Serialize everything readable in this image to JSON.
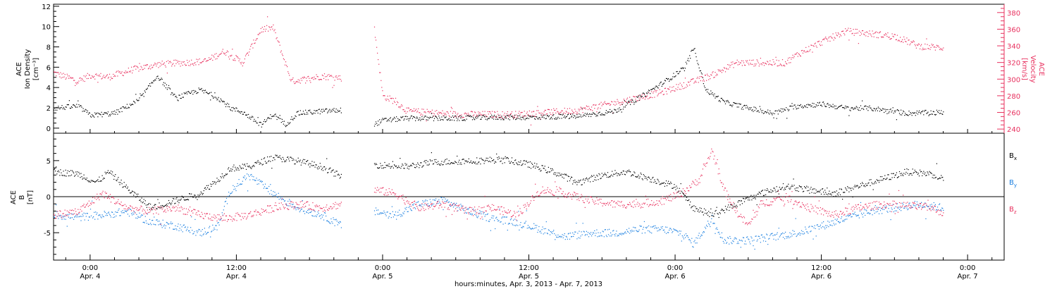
{
  "chart_data": [
    {
      "type": "scatter",
      "panel": "top",
      "ylabel_left": [
        "ACE",
        "Ion Density",
        "[cm⁻³]"
      ],
      "ylabel_right": [
        "ACE",
        "Velocity",
        "[km/s]"
      ],
      "ylim_left": [
        -0.5,
        12.2
      ],
      "ylim_right": [
        235,
        390
      ],
      "yticks_left": [
        0,
        2,
        4,
        6,
        8,
        10,
        12
      ],
      "yticks_right": [
        240,
        260,
        280,
        300,
        320,
        340,
        360,
        380
      ],
      "series": [
        {
          "name": "",
          "axis": "left",
          "color": "#000000",
          "segments": [
            [
              [
                -3.0,
                2.0
              ],
              [
                -1.0,
                2.2
              ],
              [
                0.0,
                1.3
              ],
              [
                2.0,
                1.5
              ],
              [
                4.0,
                2.8
              ],
              [
                5.5,
                5.2
              ],
              [
                7.0,
                3.0
              ],
              [
                9.0,
                3.8
              ],
              [
                10.5,
                3.0
              ],
              [
                11.5,
                2.0
              ],
              [
                12.5,
                1.6
              ],
              [
                14.0,
                0.35
              ],
              [
                15.0,
                1.4
              ],
              [
                16.0,
                0.4
              ],
              [
                17.0,
                1.5
              ],
              [
                19.0,
                1.7
              ],
              [
                20.6,
                1.8
              ]
            ],
            [
              [
                23.3,
                0.4
              ],
              [
                24.0,
                0.8
              ],
              [
                26.0,
                1.0
              ],
              [
                30.0,
                1.0
              ],
              [
                33.0,
                1.1
              ],
              [
                36.0,
                1.1
              ],
              [
                40.0,
                1.2
              ],
              [
                43.0,
                1.7
              ],
              [
                45.0,
                3.0
              ],
              [
                47.0,
                4.5
              ],
              [
                48.8,
                6.0
              ],
              [
                49.5,
                8.0
              ],
              [
                50.5,
                3.8
              ],
              [
                52.0,
                2.6
              ],
              [
                54.0,
                2.0
              ],
              [
                56.0,
                1.5
              ],
              [
                58.0,
                2.2
              ],
              [
                60.0,
                2.4
              ],
              [
                62.0,
                2.0
              ],
              [
                64.0,
                2.0
              ],
              [
                67.0,
                1.5
              ],
              [
                70.0,
                1.6
              ]
            ]
          ]
        },
        {
          "name": "",
          "axis": "right",
          "color": "#e8305e",
          "segments": [
            [
              [
                -3.0,
                308
              ],
              [
                -1.0,
                298
              ],
              [
                0.0,
                305
              ],
              [
                1.5,
                303
              ],
              [
                3.5,
                312
              ],
              [
                5.5,
                318
              ],
              [
                7.5,
                320
              ],
              [
                9.5,
                322
              ],
              [
                11.0,
                334
              ],
              [
                12.5,
                320
              ],
              [
                14.0,
                360
              ],
              [
                15.0,
                362
              ],
              [
                16.5,
                298
              ],
              [
                17.5,
                300
              ],
              [
                19.0,
                304
              ],
              [
                20.6,
                302
              ]
            ],
            [
              [
                23.3,
                360
              ],
              [
                24.0,
                280
              ],
              [
                25.0,
                274
              ],
              [
                26.0,
                262
              ],
              [
                30.0,
                258
              ],
              [
                35.0,
                258
              ],
              [
                40.0,
                263
              ],
              [
                44.0,
                275
              ],
              [
                47.0,
                285
              ],
              [
                49.0,
                295
              ],
              [
                51.0,
                305
              ],
              [
                53.0,
                320
              ],
              [
                55.0,
                320
              ],
              [
                57.0,
                320
              ],
              [
                58.0,
                330
              ],
              [
                60.0,
                345
              ],
              [
                62.0,
                358
              ],
              [
                64.0,
                355
              ],
              [
                66.0,
                352
              ],
              [
                68.0,
                340
              ],
              [
                70.0,
                338
              ]
            ]
          ]
        }
      ]
    },
    {
      "type": "scatter",
      "panel": "bottom",
      "ylabel": [
        "ACE",
        "B",
        "[nT]"
      ],
      "ylim": [
        -8.8,
        8.8
      ],
      "yticks": [
        -5,
        0,
        5
      ],
      "zero_line": true,
      "series": [
        {
          "name": "Bx",
          "color": "#000000",
          "segments": [
            [
              [
                -3.0,
                3.5
              ],
              [
                -1.0,
                3.2
              ],
              [
                0.5,
                2.0
              ],
              [
                1.5,
                3.5
              ],
              [
                3.5,
                0.5
              ],
              [
                5.0,
                -1.5
              ],
              [
                7.0,
                -0.5
              ],
              [
                9.0,
                0.5
              ],
              [
                10.5,
                2.5
              ],
              [
                11.5,
                4.0
              ],
              [
                13.0,
                4.2
              ],
              [
                15.0,
                5.5
              ],
              [
                17.0,
                5.0
              ],
              [
                19.0,
                4.2
              ],
              [
                20.6,
                2.8
              ]
            ],
            [
              [
                23.3,
                4.5
              ],
              [
                26.0,
                4.2
              ],
              [
                28.0,
                4.8
              ],
              [
                31.0,
                5.0
              ],
              [
                34.0,
                5.2
              ],
              [
                36.0,
                4.5
              ],
              [
                38.0,
                3.5
              ],
              [
                40.0,
                2.0
              ],
              [
                42.0,
                3.0
              ],
              [
                44.0,
                3.5
              ],
              [
                46.0,
                2.5
              ],
              [
                48.0,
                1.5
              ],
              [
                49.5,
                -1.5
              ],
              [
                51.0,
                -2.5
              ],
              [
                53.0,
                -1.0
              ],
              [
                55.0,
                0.5
              ],
              [
                57.0,
                1.5
              ],
              [
                59.0,
                1.0
              ],
              [
                61.0,
                0.5
              ],
              [
                63.0,
                1.5
              ],
              [
                65.0,
                2.5
              ],
              [
                67.0,
                3.5
              ],
              [
                69.0,
                3.2
              ],
              [
                70.0,
                2.5
              ]
            ]
          ]
        },
        {
          "name": "By",
          "color": "#1a7fe0",
          "segments": [
            [
              [
                -3.0,
                -2.5
              ],
              [
                -1.0,
                -2.8
              ],
              [
                1.0,
                -2.5
              ],
              [
                3.0,
                -2.0
              ],
              [
                5.0,
                -3.5
              ],
              [
                7.0,
                -4.0
              ],
              [
                9.0,
                -5.0
              ],
              [
                10.5,
                -4.0
              ],
              [
                11.5,
                1.0
              ],
              [
                13.0,
                3.0
              ],
              [
                15.0,
                0.5
              ],
              [
                17.0,
                -1.5
              ],
              [
                19.0,
                -2.5
              ],
              [
                20.6,
                -4.0
              ]
            ],
            [
              [
                23.3,
                -2.0
              ],
              [
                25.0,
                -2.5
              ],
              [
                27.0,
                -1.0
              ],
              [
                29.0,
                -0.5
              ],
              [
                31.0,
                -2.0
              ],
              [
                33.0,
                -3.0
              ],
              [
                35.0,
                -3.5
              ],
              [
                37.0,
                -4.5
              ],
              [
                39.0,
                -5.5
              ],
              [
                41.0,
                -5.0
              ],
              [
                43.0,
                -5.0
              ],
              [
                45.0,
                -4.5
              ],
              [
                47.0,
                -4.5
              ],
              [
                48.5,
                -5.0
              ],
              [
                49.5,
                -6.5
              ],
              [
                51.0,
                -3.0
              ],
              [
                52.0,
                -6.0
              ],
              [
                54.0,
                -6.0
              ],
              [
                56.0,
                -5.5
              ],
              [
                58.0,
                -5.0
              ],
              [
                60.0,
                -4.0
              ],
              [
                62.0,
                -3.0
              ],
              [
                64.0,
                -2.0
              ],
              [
                66.0,
                -1.5
              ],
              [
                68.0,
                -1.0
              ],
              [
                70.0,
                -1.5
              ]
            ]
          ]
        },
        {
          "name": "Bz",
          "color": "#e8305e",
          "segments": [
            [
              [
                -3.0,
                -2.5
              ],
              [
                -1.0,
                -2.0
              ],
              [
                1.0,
                0.5
              ],
              [
                3.0,
                -1.5
              ],
              [
                5.0,
                -2.0
              ],
              [
                7.0,
                -1.5
              ],
              [
                9.0,
                -2.5
              ],
              [
                11.0,
                -3.0
              ],
              [
                13.0,
                -2.5
              ],
              [
                15.0,
                -1.5
              ],
              [
                17.0,
                -1.0
              ],
              [
                19.0,
                -1.5
              ],
              [
                20.6,
                -1.0
              ]
            ],
            [
              [
                23.3,
                1.0
              ],
              [
                25.0,
                0.5
              ],
              [
                27.0,
                -1.5
              ],
              [
                29.0,
                -1.0
              ],
              [
                31.0,
                -2.0
              ],
              [
                33.0,
                -1.5
              ],
              [
                35.0,
                -2.5
              ],
              [
                37.0,
                1.0
              ],
              [
                39.0,
                0.5
              ],
              [
                41.0,
                -0.5
              ],
              [
                43.0,
                -1.0
              ],
              [
                45.0,
                -1.0
              ],
              [
                47.0,
                -0.5
              ],
              [
                48.5,
                0.5
              ],
              [
                50.0,
                2.5
              ],
              [
                51.0,
                6.5
              ],
              [
                52.0,
                1.0
              ],
              [
                53.0,
                -2.0
              ],
              [
                54.0,
                -4.0
              ],
              [
                55.0,
                -1.0
              ],
              [
                57.0,
                0.0
              ],
              [
                59.0,
                -1.5
              ],
              [
                61.0,
                -2.5
              ],
              [
                63.0,
                -1.5
              ],
              [
                65.0,
                -1.0
              ],
              [
                67.0,
                -1.2
              ],
              [
                69.0,
                -1.5
              ],
              [
                70.0,
                -2.2
              ]
            ]
          ]
        }
      ]
    }
  ],
  "x_axis": {
    "xlim": [
      -3.0,
      75.0
    ],
    "unit": "hours",
    "ticks": [
      {
        "value": 0,
        "time": "0:00",
        "date": "Apr. 4"
      },
      {
        "value": 12,
        "time": "12:00",
        "date": "Apr. 4"
      },
      {
        "value": 24,
        "time": "0:00",
        "date": "Apr. 5"
      },
      {
        "value": 36,
        "time": "12:00",
        "date": "Apr. 5"
      },
      {
        "value": 48,
        "time": "0:00",
        "date": "Apr. 6"
      },
      {
        "value": 60,
        "time": "12:00",
        "date": "Apr. 6"
      },
      {
        "value": 72,
        "time": "0:00",
        "date": "Apr. 7"
      }
    ],
    "label": "hours:minutes, Apr.  3, 2013 - Apr.  7, 2013"
  },
  "legend": {
    "items": [
      {
        "label": "B",
        "sub": "x",
        "color": "#000000"
      },
      {
        "label": "B",
        "sub": "y",
        "color": "#1a7fe0"
      },
      {
        "label": "B",
        "sub": "z",
        "color": "#e8305e"
      }
    ]
  },
  "colors": {
    "black": "#000000",
    "pink": "#e8305e",
    "blue": "#1a7fe0"
  }
}
